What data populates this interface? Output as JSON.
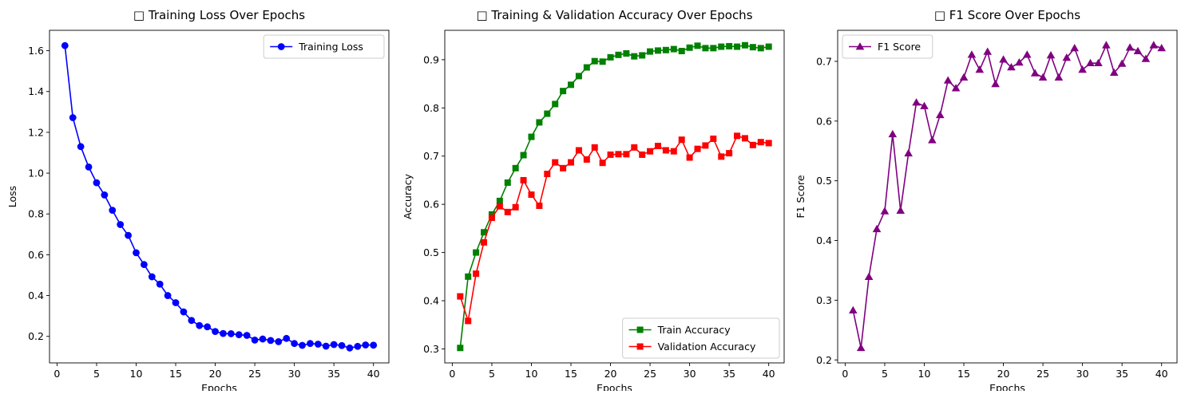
{
  "chart_data": [
    {
      "type": "line",
      "title": "□ Training Loss Over Epochs",
      "xlabel": "Epochs",
      "ylabel": "Loss",
      "xlim": [
        -0.95,
        41.95
      ],
      "ylim": [
        0.07,
        1.7
      ],
      "xticks": [
        0,
        5,
        10,
        15,
        20,
        25,
        30,
        35,
        40
      ],
      "yticks": [
        0.2,
        0.4,
        0.6,
        0.8,
        1.0,
        1.2,
        1.4,
        1.6
      ],
      "ytick_labels": [
        "0.2",
        "0.4",
        "0.6",
        "0.8",
        "1.0",
        "1.2",
        "1.4",
        "1.6"
      ],
      "legend_position": "upper right",
      "grid": false,
      "x": [
        1,
        2,
        3,
        4,
        5,
        6,
        7,
        8,
        9,
        10,
        11,
        12,
        13,
        14,
        15,
        16,
        17,
        18,
        19,
        20,
        21,
        22,
        23,
        24,
        25,
        26,
        27,
        28,
        29,
        30,
        31,
        32,
        33,
        34,
        35,
        36,
        37,
        38,
        39,
        40
      ],
      "series": [
        {
          "name": "Training Loss",
          "color": "#0000ff",
          "marker": "circle",
          "values": [
            1.625,
            1.272,
            1.13,
            1.03,
            0.953,
            0.893,
            0.818,
            0.748,
            0.695,
            0.61,
            0.552,
            0.492,
            0.456,
            0.4,
            0.365,
            0.32,
            0.278,
            0.253,
            0.247,
            0.224,
            0.214,
            0.213,
            0.208,
            0.205,
            0.182,
            0.187,
            0.18,
            0.174,
            0.19,
            0.165,
            0.156,
            0.165,
            0.162,
            0.152,
            0.16,
            0.155,
            0.143,
            0.151,
            0.158,
            0.157
          ]
        }
      ]
    },
    {
      "type": "line",
      "title": "□ Training & Validation Accuracy Over Epochs",
      "xlabel": "Epochs",
      "ylabel": "Accuracy",
      "xlim": [
        -0.95,
        41.95
      ],
      "ylim": [
        0.271,
        0.961
      ],
      "xticks": [
        0,
        5,
        10,
        15,
        20,
        25,
        30,
        35,
        40
      ],
      "yticks": [
        0.3,
        0.4,
        0.5,
        0.6,
        0.7,
        0.8,
        0.9
      ],
      "ytick_labels": [
        "0.3",
        "0.4",
        "0.5",
        "0.6",
        "0.7",
        "0.8",
        "0.9"
      ],
      "legend_position": "lower right",
      "grid": false,
      "x": [
        1,
        2,
        3,
        4,
        5,
        6,
        7,
        8,
        9,
        10,
        11,
        12,
        13,
        14,
        15,
        16,
        17,
        18,
        19,
        20,
        21,
        22,
        23,
        24,
        25,
        26,
        27,
        28,
        29,
        30,
        31,
        32,
        33,
        34,
        35,
        36,
        37,
        38,
        39,
        40
      ],
      "series": [
        {
          "name": "Train Accuracy",
          "color": "#008000",
          "marker": "square",
          "values": [
            0.302,
            0.45,
            0.5,
            0.542,
            0.579,
            0.607,
            0.645,
            0.675,
            0.702,
            0.74,
            0.77,
            0.788,
            0.808,
            0.835,
            0.848,
            0.866,
            0.884,
            0.897,
            0.896,
            0.905,
            0.91,
            0.913,
            0.907,
            0.909,
            0.917,
            0.919,
            0.92,
            0.922,
            0.918,
            0.925,
            0.929,
            0.924,
            0.924,
            0.927,
            0.928,
            0.927,
            0.93,
            0.926,
            0.924,
            0.927
          ]
        },
        {
          "name": "Validation Accuracy",
          "color": "#ff0000",
          "marker": "square",
          "values": [
            0.409,
            0.358,
            0.456,
            0.521,
            0.572,
            0.596,
            0.584,
            0.594,
            0.65,
            0.62,
            0.597,
            0.663,
            0.687,
            0.675,
            0.687,
            0.712,
            0.693,
            0.718,
            0.686,
            0.703,
            0.704,
            0.704,
            0.718,
            0.703,
            0.71,
            0.721,
            0.712,
            0.71,
            0.734,
            0.697,
            0.715,
            0.722,
            0.736,
            0.699,
            0.706,
            0.742,
            0.737,
            0.723,
            0.729,
            0.727
          ]
        }
      ]
    },
    {
      "type": "line",
      "title": "□ F1 Score Over Epochs",
      "xlabel": "Epochs",
      "ylabel": "F1 Score",
      "xlim": [
        -0.95,
        41.95
      ],
      "ylim": [
        0.195,
        0.752
      ],
      "xticks": [
        0,
        5,
        10,
        15,
        20,
        25,
        30,
        35,
        40
      ],
      "yticks": [
        0.2,
        0.3,
        0.4,
        0.5,
        0.6,
        0.7
      ],
      "ytick_labels": [
        "0.2",
        "0.3",
        "0.4",
        "0.5",
        "0.6",
        "0.7"
      ],
      "legend_position": "upper left",
      "grid": false,
      "x": [
        1,
        2,
        3,
        4,
        5,
        6,
        7,
        8,
        9,
        10,
        11,
        12,
        13,
        14,
        15,
        16,
        17,
        18,
        19,
        20,
        21,
        22,
        23,
        24,
        25,
        26,
        27,
        28,
        29,
        30,
        31,
        32,
        33,
        34,
        35,
        36,
        37,
        38,
        39,
        40
      ],
      "series": [
        {
          "name": "F1 Score",
          "color": "#800080",
          "marker": "triangle-up",
          "values": [
            0.283,
            0.22,
            0.339,
            0.419,
            0.449,
            0.578,
            0.45,
            0.546,
            0.631,
            0.625,
            0.568,
            0.61,
            0.668,
            0.655,
            0.673,
            0.711,
            0.686,
            0.716,
            0.662,
            0.703,
            0.69,
            0.698,
            0.711,
            0.68,
            0.673,
            0.71,
            0.673,
            0.706,
            0.722,
            0.686,
            0.697,
            0.697,
            0.727,
            0.681,
            0.696,
            0.723,
            0.717,
            0.704,
            0.727,
            0.722
          ]
        }
      ]
    }
  ]
}
